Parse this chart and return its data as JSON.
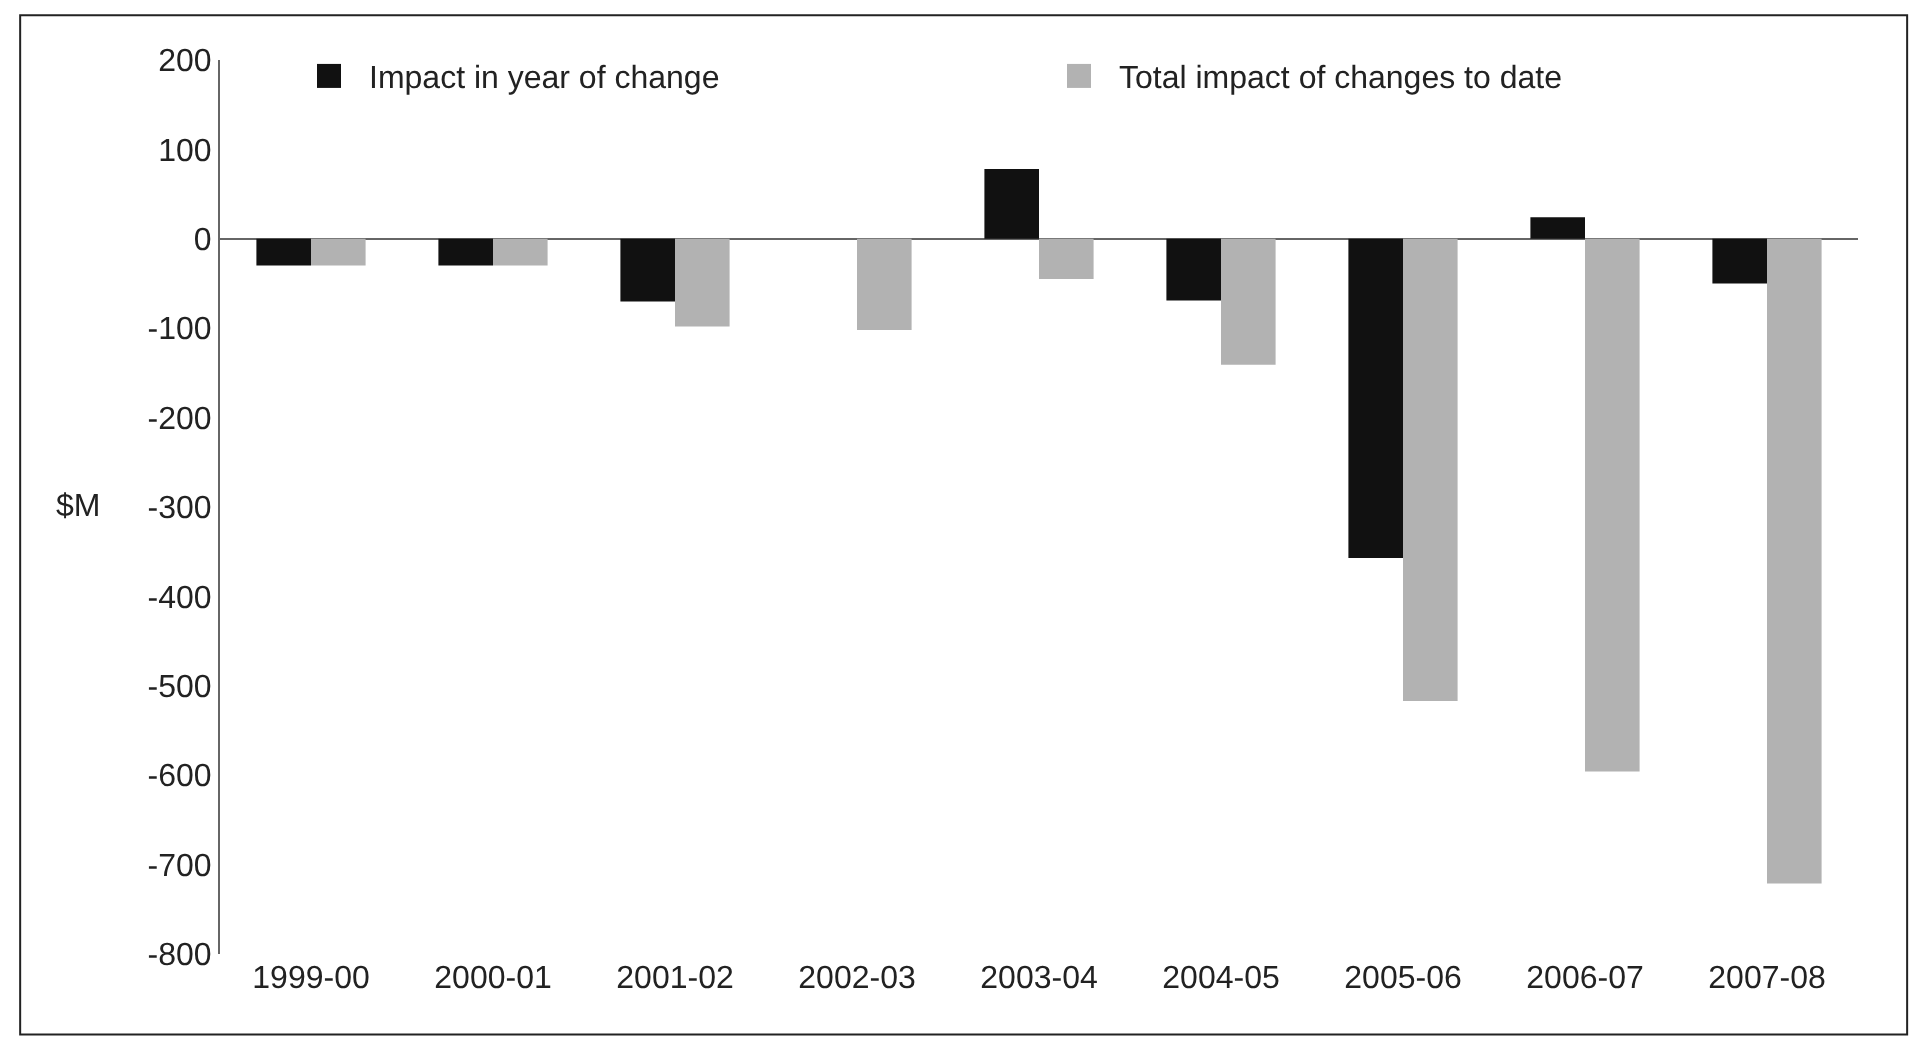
{
  "chart_data": {
    "type": "bar",
    "ylabel": "$M",
    "categories": [
      "1999-00",
      "2000-01",
      "2001-02",
      "2002-03",
      "2003-04",
      "2004-05",
      "2005-06",
      "2006-07",
      "2007-08"
    ],
    "series": [
      {
        "name": "Impact in year of change",
        "color": "#111111",
        "values": [
          -30,
          -30,
          -70,
          0,
          78,
          -69,
          -357,
          24,
          -50
        ]
      },
      {
        "name": "Total impact of changes to date",
        "color": "#b2b2b2",
        "values": [
          -30,
          -30,
          -98,
          -102,
          -45,
          -141,
          -517,
          -596,
          -721
        ]
      }
    ],
    "ylim": [
      -800,
      200
    ],
    "yticks": [
      -800,
      -700,
      -600,
      -500,
      -400,
      -300,
      -200,
      -100,
      0,
      100,
      200
    ],
    "legend": "top"
  }
}
